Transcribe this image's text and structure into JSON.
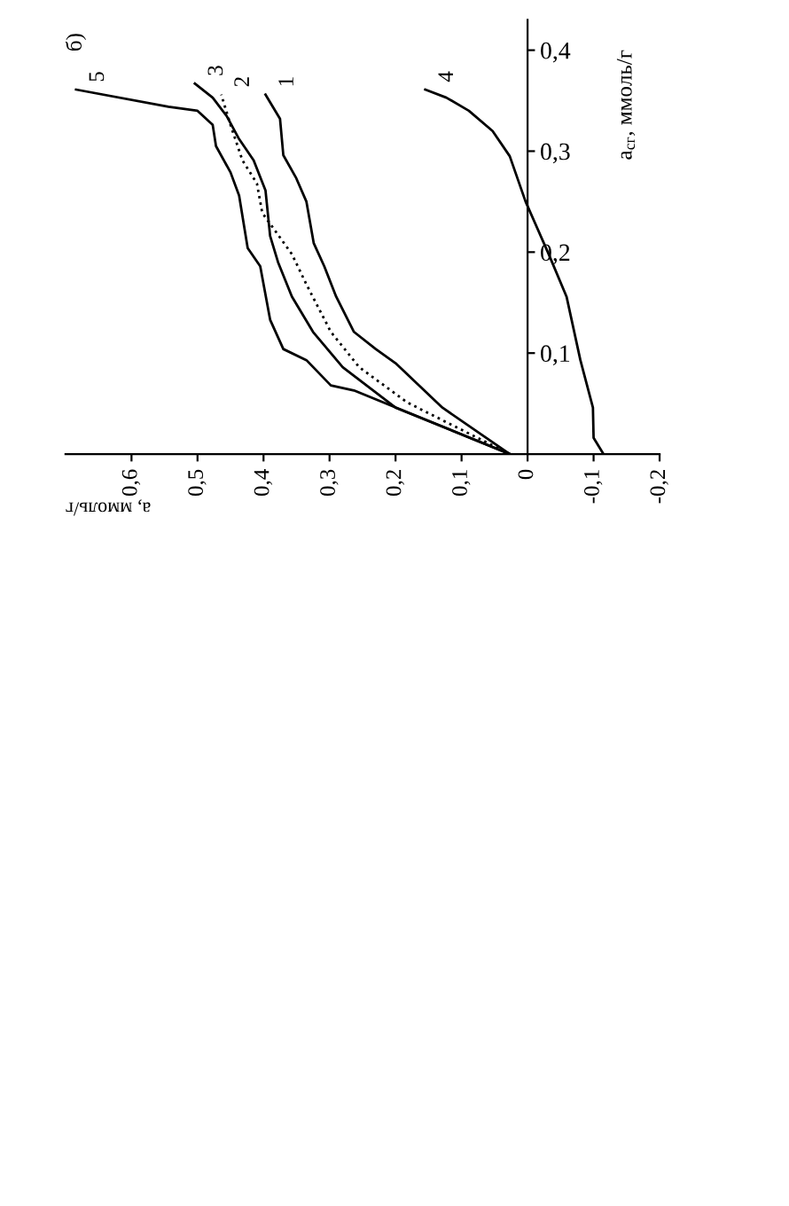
{
  "chart_data": {
    "type": "line",
    "title": "б)",
    "xlabel": "а, ммоль/г",
    "ylabel": "a$_{сг}$, ммоль/г",
    "xlim": [
      0.7,
      -0.2
    ],
    "ylim": [
      0,
      0.43
    ],
    "xticks": [
      {
        "value": -0.2,
        "label": "-0,2"
      },
      {
        "value": -0.1,
        "label": "-0,1"
      },
      0,
      {
        "value": 0.1,
        "label": "0,1"
      },
      {
        "value": 0.2,
        "label": "0,2"
      },
      {
        "value": 0.3,
        "label": "0,3"
      },
      {
        "value": 0.4,
        "label": "0,4"
      },
      {
        "value": 0.5,
        "label": "0,5"
      },
      {
        "value": 0.6,
        "label": "0,6"
      }
    ],
    "yticks": [
      {
        "value": 0.1,
        "label": "0,1"
      },
      {
        "value": 0.2,
        "label": "0,2"
      },
      {
        "value": 0.3,
        "label": "0,3"
      },
      {
        "value": 0.4,
        "label": "0,4"
      }
    ],
    "grid": false,
    "legend": false,
    "marker": "none",
    "series": [
      {
        "name": "1",
        "color": "#000000",
        "line_style": "solid",
        "x": [
          0.027,
          0.129,
          0.2,
          0.23,
          0.263,
          0.29,
          0.308,
          0.324,
          0.335,
          0.351,
          0.37,
          0.375,
          0.397
        ],
        "values": [
          0.0,
          0.046,
          0.09,
          0.104,
          0.121,
          0.156,
          0.186,
          0.209,
          0.25,
          0.274,
          0.296,
          0.332,
          0.356
        ]
      },
      {
        "name": "2",
        "color": "#000000",
        "line_style": "dotted",
        "x": [
          0.027,
          0.182,
          0.255,
          0.298,
          0.335,
          0.357,
          0.402,
          0.41,
          0.432,
          0.45,
          0.464
        ],
        "values": [
          0.0,
          0.051,
          0.086,
          0.121,
          0.168,
          0.198,
          0.239,
          0.268,
          0.291,
          0.326,
          0.356
        ]
      },
      {
        "name": "3",
        "color": "#000000",
        "line_style": "solid",
        "x": [
          0.027,
          0.2,
          0.28,
          0.325,
          0.357,
          0.378,
          0.39,
          0.397,
          0.415,
          0.437,
          0.456,
          0.477,
          0.504
        ],
        "values": [
          0.0,
          0.046,
          0.086,
          0.121,
          0.156,
          0.19,
          0.216,
          0.261,
          0.291,
          0.312,
          0.335,
          0.353,
          0.367
        ]
      },
      {
        "name": "4",
        "color": "#000000",
        "line_style": "solid",
        "x": [
          -0.115,
          -0.1,
          -0.099,
          -0.08,
          -0.059,
          -0.032,
          0.003,
          0.027,
          0.053,
          0.089,
          0.123,
          0.155
        ],
        "values": [
          0.0,
          0.016,
          0.046,
          0.093,
          0.156,
          0.198,
          0.25,
          0.295,
          0.32,
          0.34,
          0.353,
          0.361
        ]
      },
      {
        "name": "5",
        "color": "#000000",
        "line_style": "solid",
        "x": [
          0.027,
          0.263,
          0.298,
          0.335,
          0.37,
          0.39,
          0.405,
          0.424,
          0.437,
          0.45,
          0.472,
          0.477,
          0.5,
          0.544,
          0.684
        ],
        "values": [
          0.0,
          0.063,
          0.068,
          0.093,
          0.104,
          0.133,
          0.186,
          0.204,
          0.256,
          0.279,
          0.305,
          0.326,
          0.34,
          0.344,
          0.361
        ]
      }
    ]
  }
}
